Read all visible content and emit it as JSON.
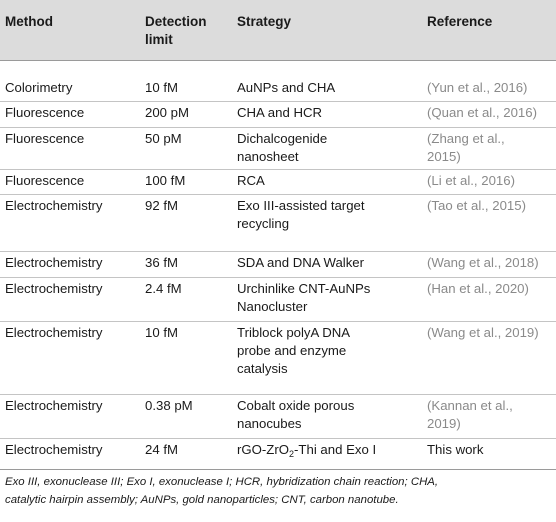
{
  "headers": {
    "method": "Method",
    "detection_line1": "Detection",
    "detection_line2": "limit",
    "strategy": "Strategy",
    "reference": "Reference"
  },
  "rows": [
    {
      "method": "Colorimetry",
      "limit": "10 fM",
      "strategy": [
        "AuNPs and CHA"
      ],
      "reference": [
        "(Yun et al., 2016)"
      ]
    },
    {
      "method": "Fluorescence",
      "limit": "200 pM",
      "strategy": [
        "CHA and HCR"
      ],
      "reference": [
        "(Quan et al., 2016)"
      ]
    },
    {
      "method": "Fluorescence",
      "limit": "50 pM",
      "strategy": [
        "Dichalcogenide",
        "nanosheet"
      ],
      "reference": [
        "(Zhang et al.,",
        "2015)"
      ]
    },
    {
      "method": "Fluorescence",
      "limit": "100 fM",
      "strategy": [
        "RCA"
      ],
      "reference": [
        "(Li et al., 2016)"
      ]
    },
    {
      "method": "Electrochemistry",
      "limit": "92 fM",
      "strategy": [
        "Exo III-assisted target",
        "recycling"
      ],
      "reference": [
        "(Tao et al., 2015)"
      ]
    },
    {
      "method": "Electrochemistry",
      "limit": "36 fM",
      "strategy": [
        "SDA and DNA Walker"
      ],
      "reference": [
        "(Wang et al., 2018)"
      ]
    },
    {
      "method": "Electrochemistry",
      "limit": "2.4 fM",
      "strategy": [
        "Urchinlike CNT-AuNPs",
        "Nanocluster"
      ],
      "reference": [
        "(Han et al., 2020)"
      ]
    },
    {
      "method": "Electrochemistry",
      "limit": "10 fM",
      "strategy": [
        "Triblock polyA DNA",
        "probe and enzyme",
        "catalysis"
      ],
      "reference": [
        "(Wang et al., 2019)"
      ]
    },
    {
      "method": "Electrochemistry",
      "limit": "0.38 pM",
      "strategy": [
        "Cobalt oxide porous",
        "nanocubes"
      ],
      "reference": [
        "(Kannan et al.,",
        "2019)"
      ]
    },
    {
      "method": "Electrochemistry",
      "limit": "24 fM",
      "strategy_parts": [
        "rGO-ZrO",
        "2",
        "-Thi and Exo I"
      ],
      "reference_plain": "This work"
    }
  ],
  "footnote": {
    "line1": "Exo III, exonuclease III; Exo I, exonuclease I; HCR, hybridization chain reaction; CHA,",
    "line2": "catalytic hairpin assembly; AuNPs, gold nanoparticles; CNT, carbon nanotube."
  }
}
